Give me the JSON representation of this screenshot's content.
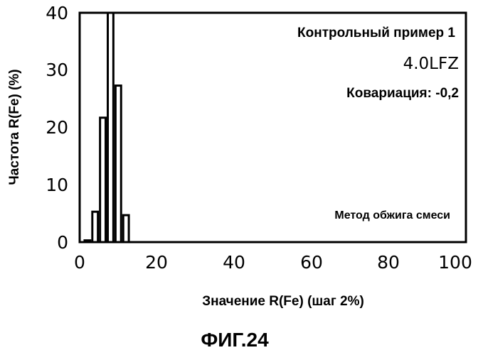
{
  "chart_data": {
    "type": "bar",
    "title": "",
    "xlabel": "Значение R(Fe) (шаг 2%)",
    "ylabel": "Частота R(Fe) (%)",
    "xlim": [
      0,
      100
    ],
    "ylim": [
      0,
      40
    ],
    "x_ticks": [
      "0",
      "20",
      "40",
      "60",
      "80",
      "100"
    ],
    "y_ticks": [
      "0",
      "10",
      "20",
      "30",
      "40"
    ],
    "bin_width": 2,
    "bins": [
      {
        "x": 2,
        "value": 0.3
      },
      {
        "x": 4,
        "value": 5.3
      },
      {
        "x": 6,
        "value": 21.7
      },
      {
        "x": 8,
        "value": 40
      },
      {
        "x": 10,
        "value": 27.3
      },
      {
        "x": 12,
        "value": 4.7
      }
    ],
    "grid": false,
    "annotations": {
      "sample": "Контрольный пример 1",
      "code": "4.0LFZ",
      "covariance": "Ковариация: -0,2",
      "method": "Метод обжига смеси"
    }
  },
  "figure_caption": "ФИГ.24"
}
